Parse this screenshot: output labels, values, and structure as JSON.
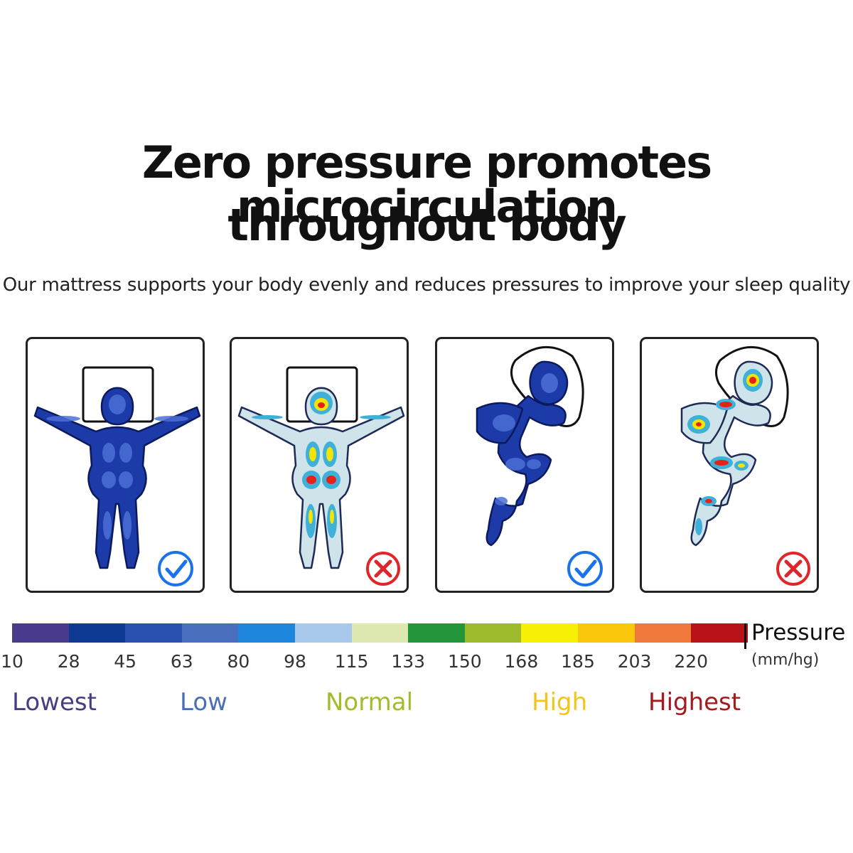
{
  "title_line1": "Zero pressure promotes microcirculation",
  "title_line2": "throughout body",
  "subtitle": "Our mattress supports your body evenly and reduces pressures to improve your sleep quality",
  "panels": [
    {
      "pose": "back-arms-out",
      "map": "even-low",
      "mark": "check"
    },
    {
      "pose": "back-arms-out",
      "map": "hotspots",
      "mark": "cross"
    },
    {
      "pose": "side-curled",
      "map": "even-low",
      "mark": "check"
    },
    {
      "pose": "side-curled",
      "map": "hotspots",
      "mark": "cross"
    }
  ],
  "colors": {
    "check": "#1a73e8",
    "cross": "#e0262b",
    "low_fill": "#1c3aa8",
    "low_light": "#4c70d6",
    "hot_base": "#cfe3ea",
    "hot_mid": "#3fb0d8",
    "hot_yellow": "#f5e400",
    "hot_red": "#e62218"
  },
  "scale": {
    "colors": [
      "#4a3a8c",
      "#0f3a94",
      "#2b51b0",
      "#4a6fbf",
      "#1e86dc",
      "#a9c9ec",
      "#dde8b0",
      "#23953a",
      "#9dbb2c",
      "#f7ef04",
      "#fac70c",
      "#ef7a3c",
      "#b81318"
    ],
    "ticks": [
      "10",
      "28",
      "45",
      "63",
      "80",
      "98",
      "115",
      "133",
      "150",
      "168",
      "185",
      "203",
      "220"
    ],
    "label": "Pressure",
    "unit": "(mm/hg)",
    "levels": [
      {
        "label": "Lowest",
        "color": "#4a3c82"
      },
      {
        "label": "Low",
        "color": "#4b6fb5"
      },
      {
        "label": "Normal",
        "color": "#a4bb2c"
      },
      {
        "label": "High",
        "color": "#f2c41c"
      },
      {
        "label": "Highest",
        "color": "#a51a1e"
      }
    ]
  }
}
